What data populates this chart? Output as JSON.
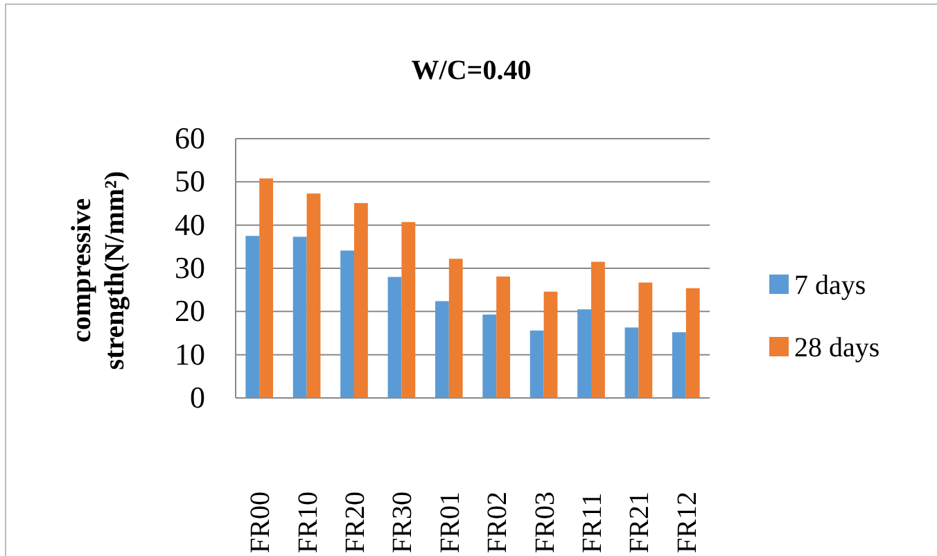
{
  "chart_data": {
    "type": "bar",
    "title": "W/C=0.40",
    "ylabel": "compressive strength(N/mm²)",
    "categories": [
      "FR00",
      "FR10",
      "FR20",
      "FR30",
      "FR01",
      "FR02",
      "FR03",
      "FR11",
      "FR21",
      "FR12"
    ],
    "series": [
      {
        "name": "7 days",
        "color": "#5b9bd5",
        "values": [
          37.5,
          37.3,
          34.1,
          28.0,
          22.4,
          19.3,
          15.6,
          20.5,
          16.3,
          15.2
        ]
      },
      {
        "name": "28 days",
        "color": "#ed7d31",
        "values": [
          50.8,
          47.3,
          45.1,
          40.7,
          32.2,
          28.1,
          24.6,
          31.5,
          26.7,
          25.4
        ]
      }
    ],
    "ylim": [
      0,
      60
    ],
    "yticks": [
      0,
      10,
      20,
      30,
      40,
      50,
      60
    ],
    "grid": "y",
    "legend": "right"
  }
}
